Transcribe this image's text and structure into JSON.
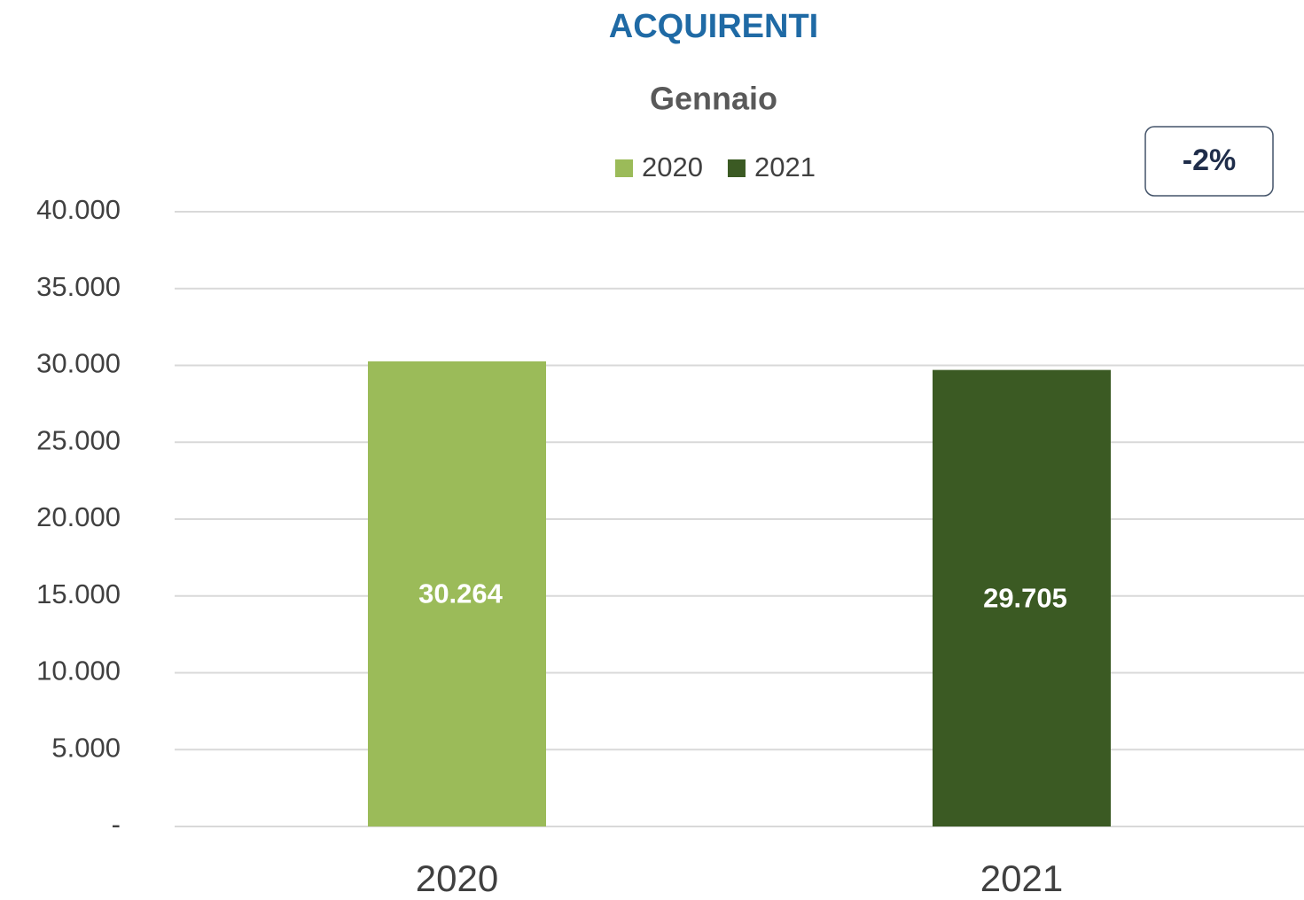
{
  "chart_data": {
    "type": "bar",
    "title": "ACQUIRENTI",
    "subtitle": "Gennaio",
    "annotation": "-2%",
    "categories": [
      "2020",
      "2021"
    ],
    "series": [
      {
        "name": "2020",
        "color": "#9bbb59",
        "values": [
          30264,
          null
        ],
        "value_labels": [
          "30.264",
          null
        ]
      },
      {
        "name": "2021",
        "color": "#3b5a23",
        "values": [
          null,
          29705
        ],
        "value_labels": [
          null,
          "29.705"
        ]
      }
    ],
    "ylim": [
      0,
      40000
    ],
    "yticks": [
      {
        "value": 0,
        "label": "-"
      },
      {
        "value": 5000,
        "label": "5.000"
      },
      {
        "value": 10000,
        "label": "10.000"
      },
      {
        "value": 15000,
        "label": "15.000"
      },
      {
        "value": 20000,
        "label": "20.000"
      },
      {
        "value": 25000,
        "label": "25.000"
      },
      {
        "value": 30000,
        "label": "30.000"
      },
      {
        "value": 35000,
        "label": "35.000"
      },
      {
        "value": 40000,
        "label": "40.000"
      }
    ],
    "grid": true,
    "legend": "top"
  }
}
